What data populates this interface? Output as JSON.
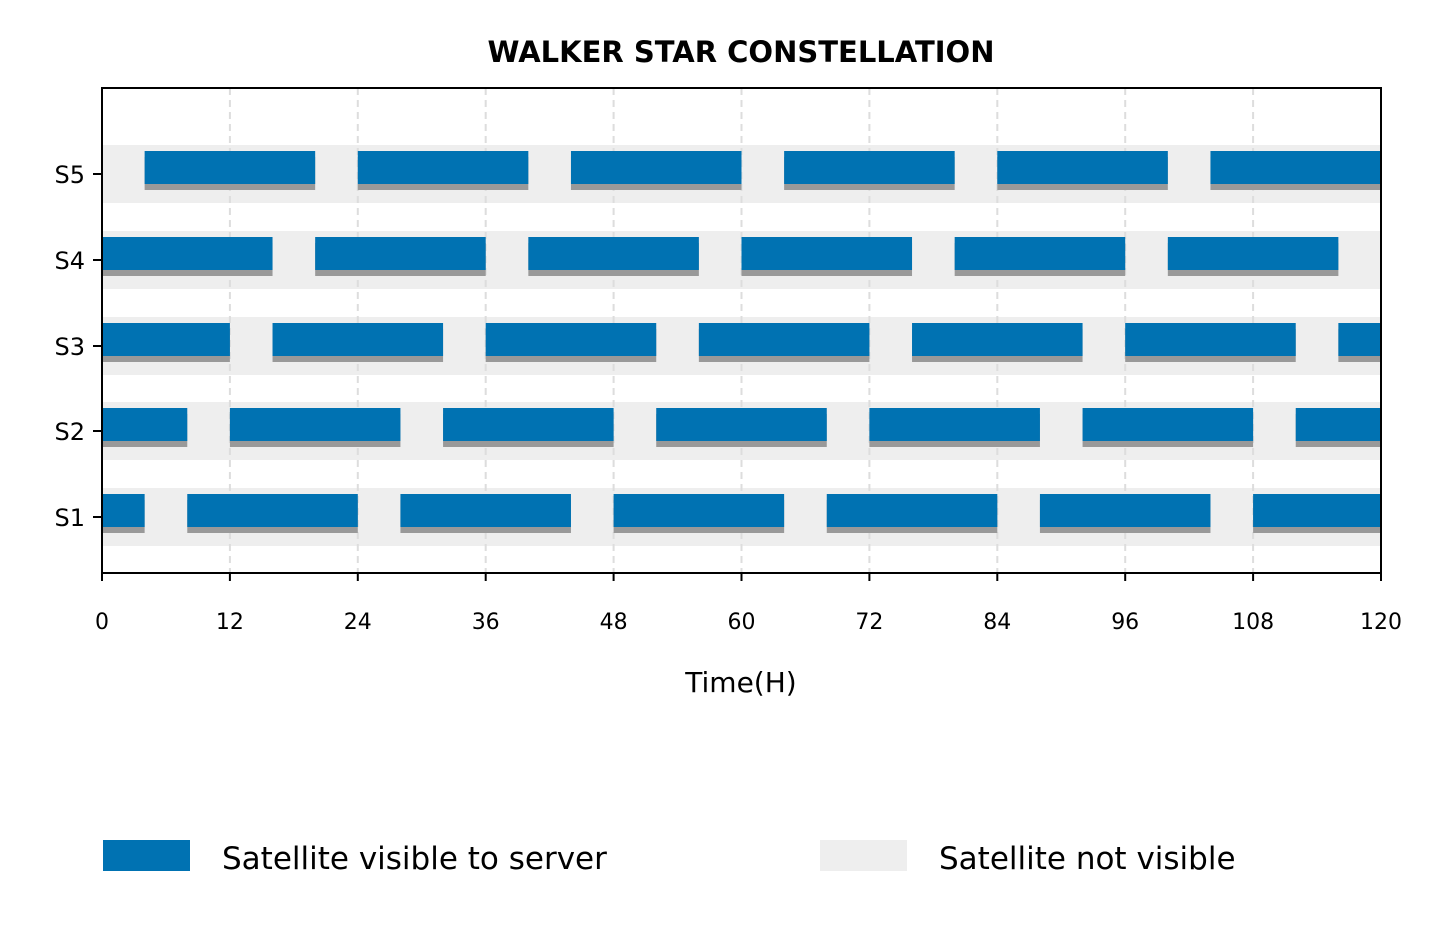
{
  "chart_data": {
    "type": "gantt",
    "title": "WALKER STAR CONSTELLATION",
    "xlabel": "Time(H)",
    "ylabel": "",
    "xlim": [
      0,
      120
    ],
    "xticks": [
      0,
      12,
      24,
      36,
      48,
      60,
      72,
      84,
      96,
      108,
      120
    ],
    "grid": "x-dashed",
    "categories": [
      "S1",
      "S2",
      "S3",
      "S4",
      "S5"
    ],
    "background_bands": [
      {
        "row": "S1",
        "start": 0,
        "end": 120
      },
      {
        "row": "S2",
        "start": 0,
        "end": 120
      },
      {
        "row": "S3",
        "start": 0,
        "end": 120
      },
      {
        "row": "S4",
        "start": 0,
        "end": 120
      },
      {
        "row": "S5",
        "start": 0,
        "end": 120
      }
    ],
    "series": [
      {
        "row": "S1",
        "intervals": [
          [
            0,
            4
          ],
          [
            8,
            24
          ],
          [
            28,
            44
          ],
          [
            48,
            64
          ],
          [
            68,
            84
          ],
          [
            88,
            104
          ],
          [
            108,
            120
          ]
        ]
      },
      {
        "row": "S2",
        "intervals": [
          [
            0,
            8
          ],
          [
            12,
            28
          ],
          [
            32,
            48
          ],
          [
            52,
            68
          ],
          [
            72,
            88
          ],
          [
            92,
            108
          ],
          [
            112,
            120
          ]
        ]
      },
      {
        "row": "S3",
        "intervals": [
          [
            0,
            12
          ],
          [
            16,
            32
          ],
          [
            36,
            52
          ],
          [
            56,
            72
          ],
          [
            76,
            92
          ],
          [
            96,
            112
          ],
          [
            116,
            120
          ]
        ]
      },
      {
        "row": "S4",
        "intervals": [
          [
            0,
            16
          ],
          [
            20,
            36
          ],
          [
            40,
            56
          ],
          [
            60,
            76
          ],
          [
            80,
            96
          ],
          [
            100,
            116
          ]
        ]
      },
      {
        "row": "S5",
        "intervals": [
          [
            4,
            20
          ],
          [
            24,
            40
          ],
          [
            44,
            60
          ],
          [
            64,
            80
          ],
          [
            84,
            100
          ],
          [
            104,
            120
          ]
        ]
      }
    ],
    "legend": {
      "placement": "bottom",
      "entries": [
        {
          "label": "Satellite visible to server",
          "color": "#0072B2"
        },
        {
          "label": "Satellite not visible",
          "color": "#EEEEEE"
        }
      ]
    },
    "colors": {
      "visible": "#0072B2",
      "not_visible": "#EEEEEE",
      "shadow": "#999999",
      "grid": "#DDDDDD"
    }
  }
}
